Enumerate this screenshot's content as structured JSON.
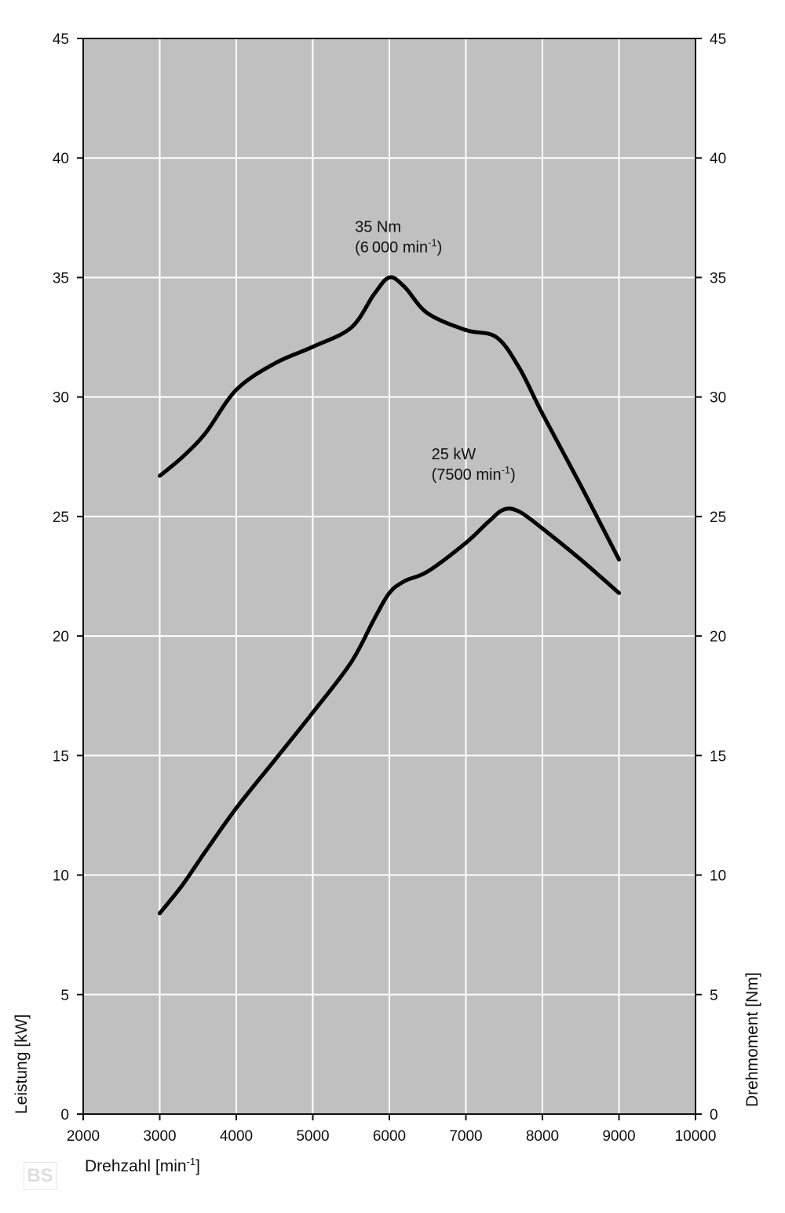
{
  "chart_data": {
    "type": "line",
    "x_axis": {
      "label": "Drehzahl [min",
      "label_sup": "-1",
      "label_end": "]",
      "range": [
        2000,
        10000
      ],
      "ticks": [
        "2000",
        "3000",
        "4000",
        "5000",
        "6000",
        "7000",
        "8000",
        "9000",
        "10000"
      ]
    },
    "y_axis_left": {
      "label": "Leistung [kW]",
      "range": [
        0,
        45
      ],
      "ticks": [
        "0",
        "5",
        "10",
        "15",
        "20",
        "25",
        "30",
        "35",
        "40",
        "45"
      ]
    },
    "y_axis_right": {
      "label": "Drehmoment [Nm]",
      "range": [
        0,
        45
      ],
      "ticks": [
        "0",
        "5",
        "10",
        "15",
        "20",
        "25",
        "30",
        "35",
        "40",
        "45"
      ]
    },
    "grid": true,
    "plot_background": "#c0c0c0",
    "line_color": "#000000",
    "series": [
      {
        "axis": "right",
        "x": [
          3000,
          3300,
          3600,
          4000,
          4500,
          5000,
          5500,
          5800,
          6000,
          6200,
          6500,
          7000,
          7400,
          7700,
          8000,
          8500,
          9000
        ],
        "y": [
          26.7,
          27.5,
          28.5,
          30.3,
          31.4,
          32.1,
          32.9,
          34.3,
          35.0,
          34.6,
          33.5,
          32.8,
          32.5,
          31.2,
          29.3,
          26.3,
          23.2
        ]
      },
      {
        "axis": "left",
        "x": [
          3000,
          3300,
          3600,
          4000,
          4500,
          5000,
          5500,
          5800,
          6000,
          6200,
          6500,
          7000,
          7300,
          7500,
          7700,
          8000,
          8500,
          9000
        ],
        "y": [
          8.4,
          9.6,
          11.0,
          12.8,
          14.8,
          16.8,
          18.9,
          20.7,
          21.8,
          22.3,
          22.7,
          23.9,
          24.8,
          25.3,
          25.2,
          24.5,
          23.2,
          21.8
        ]
      }
    ],
    "annotations": [
      {
        "line1": "35 Nm",
        "line2": "(6 000 min",
        "sup": "-1",
        "end": ")",
        "x": 5550,
        "y": 36.9
      },
      {
        "line1": "25 kW",
        "line2": "(7500  min",
        "sup": "-1",
        "end": ")",
        "x": 6550,
        "y": 27.4
      }
    ]
  },
  "logo": {
    "text": "BS"
  }
}
